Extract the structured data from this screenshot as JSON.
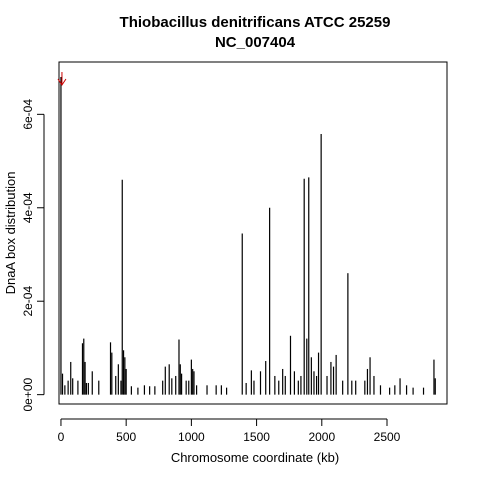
{
  "chart_data": {
    "type": "bar",
    "title_line1": "Thiobacillus denitrificans ATCC 25259",
    "title_line2": "NC_007404",
    "xlabel": "Chromosome coordinate (kb)",
    "ylabel": "DnaA box distribution",
    "xlim": [
      -15,
      2960
    ],
    "ylim": [
      -2e-05,
      0.000712
    ],
    "x_ticks": [
      0,
      500,
      1000,
      1500,
      2000,
      2500
    ],
    "x_tick_labels": [
      "0",
      "500",
      "1000",
      "1500",
      "2000",
      "2500"
    ],
    "y_ticks": [
      0,
      0.0002,
      0.0004,
      0.0006
    ],
    "y_tick_labels": [
      "0e+00",
      "2e-04",
      "4e-04",
      "6e-04"
    ],
    "grid": false,
    "bar_color": "#000000",
    "arrow_color": "#cc0000",
    "arrow_x": 0,
    "x": [
      0,
      12,
      30,
      55,
      75,
      90,
      130,
      165,
      175,
      185,
      195,
      210,
      240,
      290,
      380,
      390,
      420,
      440,
      460,
      470,
      480,
      490,
      500,
      540,
      590,
      640,
      680,
      720,
      780,
      800,
      830,
      850,
      880,
      905,
      915,
      925,
      960,
      980,
      1000,
      1010,
      1020,
      1040,
      1120,
      1190,
      1230,
      1270,
      1390,
      1420,
      1460,
      1480,
      1530,
      1570,
      1600,
      1640,
      1670,
      1700,
      1720,
      1760,
      1790,
      1820,
      1840,
      1865,
      1885,
      1900,
      1920,
      1940,
      1960,
      1975,
      1995,
      2040,
      2070,
      2090,
      2110,
      2160,
      2200,
      2230,
      2260,
      2330,
      2350,
      2370,
      2400,
      2450,
      2520,
      2560,
      2600,
      2650,
      2700,
      2780,
      2860,
      2870
    ],
    "values": [
      0.00068,
      4.5e-05,
      2e-05,
      3e-05,
      7e-05,
      3.5e-05,
      3e-05,
      0.00011,
      0.00012,
      7e-05,
      2.5e-05,
      2.5e-05,
      5e-05,
      3e-05,
      0.000112,
      9e-05,
      4e-05,
      6.5e-05,
      3e-05,
      0.00046,
      9.5e-05,
      8e-05,
      5.5e-05,
      1.8e-05,
      1.5e-05,
      2e-05,
      1.8e-05,
      1.8e-05,
      3e-05,
      6e-05,
      6.5e-05,
      3.5e-05,
      4e-05,
      0.000118,
      6.5e-05,
      4.5e-05,
      3e-05,
      3e-05,
      7.5e-05,
      5.5e-05,
      5e-05,
      2e-05,
      2e-05,
      2e-05,
      2e-05,
      1.5e-05,
      0.000345,
      2.5e-05,
      5.2e-05,
      3e-05,
      5e-05,
      7.2e-05,
      0.0004,
      4e-05,
      3e-05,
      5.5e-05,
      4e-05,
      0.000126,
      5e-05,
      3e-05,
      4e-05,
      0.000462,
      0.00012,
      0.000465,
      8e-05,
      5e-05,
      4e-05,
      9e-05,
      0.000558,
      4e-05,
      7e-05,
      6e-05,
      8.5e-05,
      3e-05,
      0.00026,
      3e-05,
      3e-05,
      3e-05,
      5.5e-05,
      8e-05,
      4e-05,
      2e-05,
      1.5e-05,
      2e-05,
      3.5e-05,
      2e-05,
      1.5e-05,
      1.5e-05,
      7.5e-05,
      3.5e-05
    ]
  }
}
